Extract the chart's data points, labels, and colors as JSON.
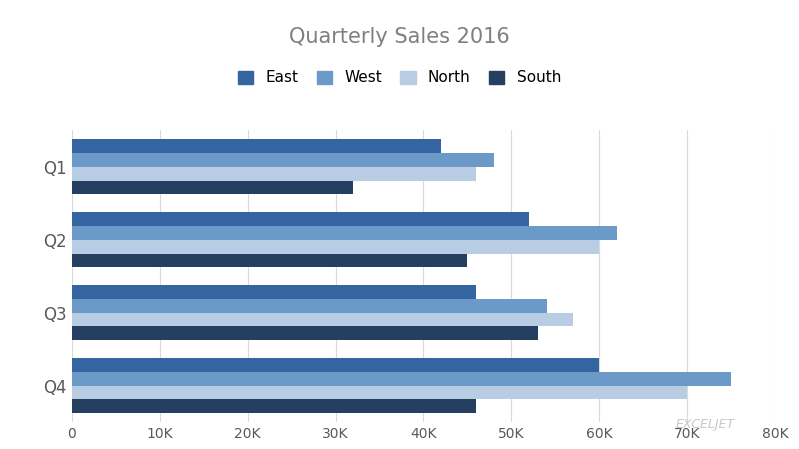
{
  "title": "Quarterly Sales 2016",
  "title_color": "#7F7F7F",
  "categories": [
    "Q1",
    "Q2",
    "Q3",
    "Q4"
  ],
  "series": {
    "East": [
      42000,
      52000,
      46000,
      60000
    ],
    "West": [
      48000,
      62000,
      54000,
      75000
    ],
    "North": [
      46000,
      60000,
      57000,
      70000
    ],
    "South": [
      32000,
      45000,
      53000,
      46000
    ]
  },
  "colors": {
    "East": "#3565A0",
    "West": "#6B9AC8",
    "North": "#B8CCE4",
    "South": "#243F60"
  },
  "xlim": [
    0,
    80000
  ],
  "xticks": [
    0,
    10000,
    20000,
    30000,
    40000,
    50000,
    60000,
    70000,
    80000
  ],
  "xtick_labels": [
    "0",
    "10K",
    "20K",
    "30K",
    "40K",
    "50K",
    "60K",
    "70K",
    "80K"
  ],
  "background_color": "#FFFFFF",
  "plot_background": "#FFFFFF",
  "gridcolor": "#D9D9D9",
  "legend_order": [
    "East",
    "West",
    "North",
    "South"
  ],
  "bar_height": 0.19,
  "watermark": "EXCELJET",
  "watermark_color": "#C8C8C8"
}
